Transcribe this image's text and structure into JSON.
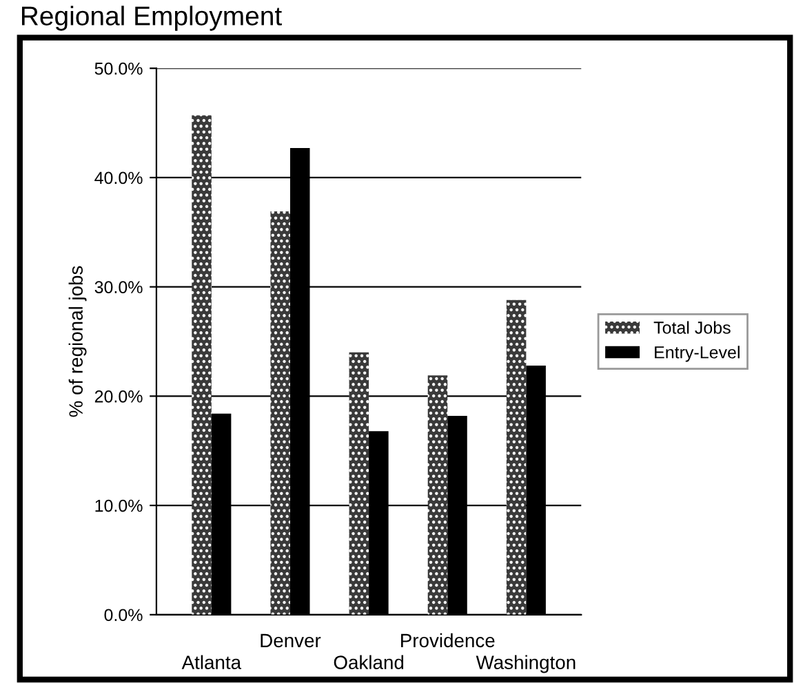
{
  "chart_data": {
    "type": "bar",
    "title": "Regional Employment",
    "ylabel": "% of regional jobs",
    "categories": [
      "Atlanta",
      "Denver",
      "Oakland",
      "Providence",
      "Washington"
    ],
    "series": [
      {
        "name": "Total Jobs",
        "color": "#3a3a3a",
        "values": [
          45.7,
          36.9,
          24.0,
          21.9,
          28.8
        ]
      },
      {
        "name": "Entry-Level",
        "color": "#000000",
        "values": [
          18.4,
          42.7,
          16.8,
          18.2,
          22.8
        ]
      }
    ],
    "ylim": [
      0,
      50
    ],
    "yticks": [
      {
        "value": 0,
        "label": "0.0%"
      },
      {
        "value": 10,
        "label": "10.0%"
      },
      {
        "value": 20,
        "label": "20.0%"
      },
      {
        "value": 30,
        "label": "30.0%"
      },
      {
        "value": 40,
        "label": "40.0%"
      },
      {
        "value": 50,
        "label": "50.0%"
      }
    ],
    "grid": "y",
    "legend": "right"
  }
}
